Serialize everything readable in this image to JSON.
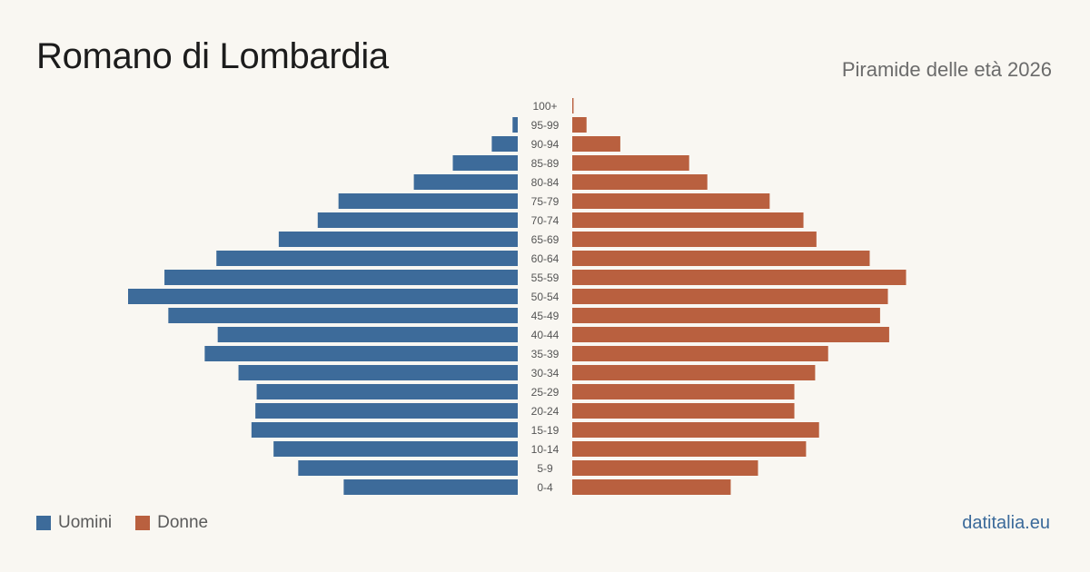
{
  "header": {
    "title": "Romano di Lombardia",
    "subtitle": "Piramide delle età 2026"
  },
  "legend": {
    "men_label": "Uomini",
    "women_label": "Donne"
  },
  "footer": {
    "source": "datitalia.eu"
  },
  "colors": {
    "men": "#3d6b9a",
    "women": "#b9603f",
    "background": "#f9f7f2"
  },
  "chart_data": {
    "type": "bar",
    "orientation": "horizontal-population-pyramid",
    "categories": [
      "100+",
      "95-99",
      "90-94",
      "85-89",
      "80-84",
      "75-79",
      "70-74",
      "65-69",
      "60-64",
      "55-59",
      "50-54",
      "45-49",
      "40-44",
      "35-39",
      "30-34",
      "25-29",
      "20-24",
      "15-19",
      "10-14",
      "5-9",
      "0-4"
    ],
    "series": [
      {
        "name": "Uomini",
        "values": [
          0,
          4,
          20,
          50,
          80,
          138,
          154,
          184,
          232,
          272,
          300,
          269,
          231,
          241,
          215,
          201,
          202,
          205,
          188,
          169,
          134
        ]
      },
      {
        "name": "Donne",
        "values": [
          1,
          11,
          37,
          90,
          104,
          152,
          178,
          188,
          229,
          257,
          243,
          237,
          244,
          197,
          187,
          171,
          171,
          190,
          180,
          143,
          122
        ]
      }
    ],
    "grid": false,
    "legend_position": "bottom-left"
  }
}
